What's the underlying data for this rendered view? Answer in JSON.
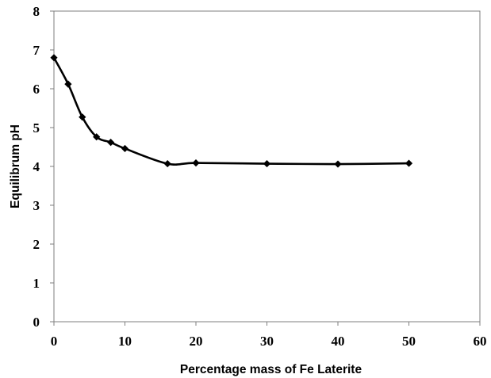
{
  "chart_data": {
    "type": "line",
    "title": "",
    "xlabel": "Percentage mass of Fe Laterite",
    "ylabel": "Equilibrum pH",
    "xlim": [
      0,
      60
    ],
    "ylim": [
      0,
      8
    ],
    "xticks": [
      0,
      10,
      20,
      30,
      40,
      50,
      60
    ],
    "yticks": [
      0,
      1,
      2,
      3,
      4,
      5,
      6,
      7,
      8
    ],
    "grid": false,
    "legend": "none",
    "series": [
      {
        "marker": "diamond",
        "color": "#000000",
        "x": [
          0,
          2,
          4,
          6,
          8,
          10,
          16,
          20,
          30,
          40,
          50
        ],
        "y": [
          6.8,
          6.12,
          5.27,
          4.76,
          4.62,
          4.46,
          4.07,
          4.09,
          4.07,
          4.06,
          4.08
        ]
      }
    ]
  }
}
